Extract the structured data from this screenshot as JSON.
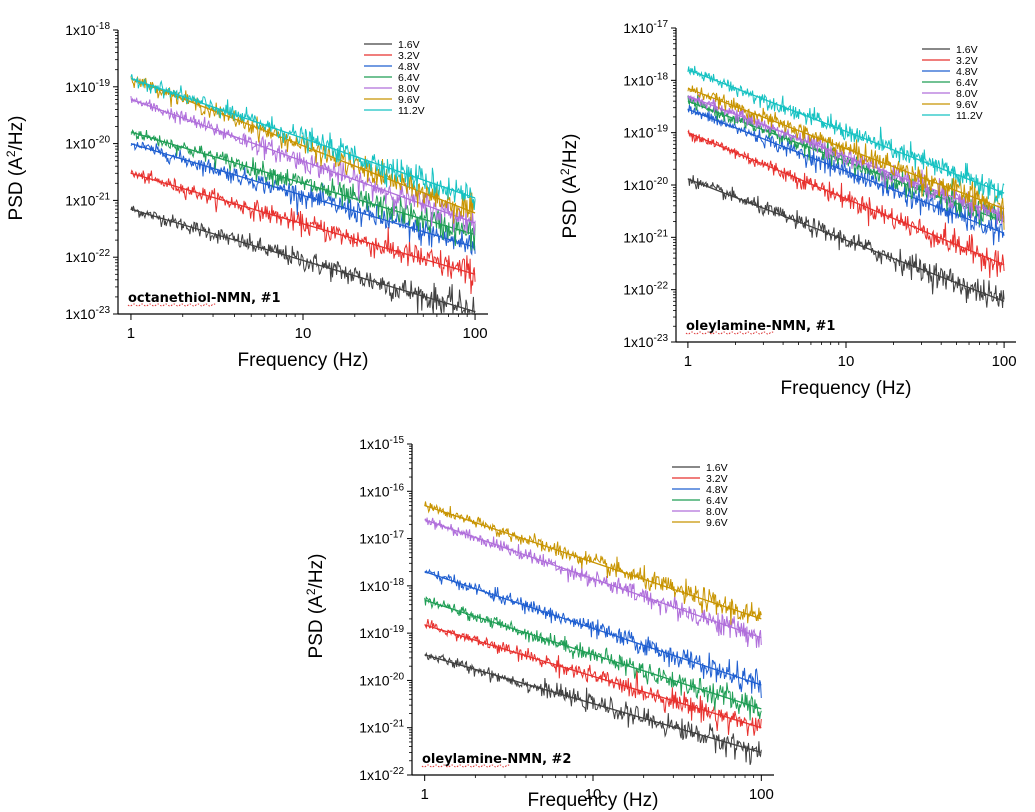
{
  "chart_data": [
    {
      "type": "line",
      "annotation": "octanethiol-NMN, #1",
      "xlabel": "Frequency (Hz)",
      "ylabel_base": "PSD (A",
      "ylabel_sup": "2",
      "ylabel_tail": "/Hz)",
      "x_scale": "log",
      "y_scale": "log",
      "xlim": [
        1,
        100
      ],
      "ylim": [
        1e-23,
        1e-18
      ],
      "x_ticks": [
        {
          "value": 1,
          "label": "1"
        },
        {
          "value": 10,
          "label": "10"
        },
        {
          "value": 100,
          "label": "100"
        }
      ],
      "y_ticks": [
        {
          "value": 1e-23,
          "base": "1x10",
          "exp": "-23"
        },
        {
          "value": 1e-22,
          "base": "1x10",
          "exp": "-22"
        },
        {
          "value": 1e-21,
          "base": "1x10",
          "exp": "-21"
        },
        {
          "value": 1e-20,
          "base": "1x10",
          "exp": "-20"
        },
        {
          "value": 1e-19,
          "base": "1x10",
          "exp": "-19"
        },
        {
          "value": 1e-18,
          "base": "1x10",
          "exp": "-18"
        }
      ],
      "legend_position": "top-right",
      "series": [
        {
          "name": "1.6V",
          "color": "#404040",
          "start": 7e-22,
          "end": 1.1e-23
        },
        {
          "name": "3.2V",
          "color": "#e8312e",
          "start": 3e-21,
          "end": 5e-23
        },
        {
          "name": "4.8V",
          "color": "#1f5fd1",
          "start": 1e-20,
          "end": 1.5e-22
        },
        {
          "name": "6.4V",
          "color": "#1f9e55",
          "start": 1.6e-20,
          "end": 2.5e-22
        },
        {
          "name": "8.0V",
          "color": "#b06fdb",
          "start": 6e-20,
          "end": 4e-22
        },
        {
          "name": "9.6V",
          "color": "#c89400",
          "start": 1.4e-19,
          "end": 6e-22
        },
        {
          "name": "11.2V",
          "color": "#16c2c2",
          "start": 1.4e-19,
          "end": 1.1e-21
        }
      ]
    },
    {
      "type": "line",
      "annotation": "oleylamine-NMN, #1",
      "xlabel": "Frequency (Hz)",
      "ylabel_base": "PSD (A",
      "ylabel_sup": "2",
      "ylabel_tail": "/Hz)",
      "x_scale": "log",
      "y_scale": "log",
      "xlim": [
        1,
        100
      ],
      "ylim": [
        1e-23,
        1e-17
      ],
      "x_ticks": [
        {
          "value": 1,
          "label": "1"
        },
        {
          "value": 10,
          "label": "10"
        },
        {
          "value": 100,
          "label": "100"
        }
      ],
      "y_ticks": [
        {
          "value": 1e-23,
          "base": "1x10",
          "exp": "-23"
        },
        {
          "value": 1e-22,
          "base": "1x10",
          "exp": "-22"
        },
        {
          "value": 1e-21,
          "base": "1x10",
          "exp": "-21"
        },
        {
          "value": 1e-20,
          "base": "1x10",
          "exp": "-20"
        },
        {
          "value": 1e-19,
          "base": "1x10",
          "exp": "-19"
        },
        {
          "value": 1e-18,
          "base": "1x10",
          "exp": "-18"
        },
        {
          "value": 1e-17,
          "base": "1x10",
          "exp": "-17"
        }
      ],
      "legend_position": "top-right",
      "series": [
        {
          "name": "1.6V",
          "color": "#404040",
          "start": 1.3e-20,
          "end": 6e-23
        },
        {
          "name": "3.2V",
          "color": "#e8312e",
          "start": 1e-19,
          "end": 3e-22
        },
        {
          "name": "4.8V",
          "color": "#1f5fd1",
          "start": 2.8e-19,
          "end": 1.2e-21
        },
        {
          "name": "6.4V",
          "color": "#1f9e55",
          "start": 4e-19,
          "end": 2e-21
        },
        {
          "name": "8.0V",
          "color": "#b06fdb",
          "start": 5e-19,
          "end": 2.5e-21
        },
        {
          "name": "9.6V",
          "color": "#c89400",
          "start": 7e-19,
          "end": 3.5e-21
        },
        {
          "name": "11.2V",
          "color": "#16c2c2",
          "start": 1.6e-18,
          "end": 7e-21
        }
      ]
    },
    {
      "type": "line",
      "annotation": "oleylamine-NMN, #2",
      "xlabel": "Frequency (Hz)",
      "ylabel_base": "PSD (A",
      "ylabel_sup": "2",
      "ylabel_tail": "/Hz)",
      "x_scale": "log",
      "y_scale": "log",
      "xlim": [
        1,
        100
      ],
      "ylim": [
        1e-22,
        1e-15
      ],
      "x_ticks": [
        {
          "value": 1,
          "label": "1"
        },
        {
          "value": 10,
          "label": "10"
        },
        {
          "value": 100,
          "label": "100"
        }
      ],
      "y_ticks": [
        {
          "value": 1e-22,
          "base": "1x10",
          "exp": "-22"
        },
        {
          "value": 1e-21,
          "base": "1x10",
          "exp": "-21"
        },
        {
          "value": 1e-20,
          "base": "1x10",
          "exp": "-20"
        },
        {
          "value": 1e-19,
          "base": "1x10",
          "exp": "-19"
        },
        {
          "value": 1e-18,
          "base": "1x10",
          "exp": "-18"
        },
        {
          "value": 1e-17,
          "base": "1x10",
          "exp": "-17"
        },
        {
          "value": 1e-16,
          "base": "1x10",
          "exp": "-16"
        },
        {
          "value": 1e-15,
          "base": "1x10",
          "exp": "-15"
        }
      ],
      "legend_position": "top-right",
      "series": [
        {
          "name": "1.6V",
          "color": "#404040",
          "start": 3.5e-20,
          "end": 3e-22
        },
        {
          "name": "3.2V",
          "color": "#e8312e",
          "start": 1.5e-19,
          "end": 1e-21
        },
        {
          "name": "4.8V",
          "color": "#1f5fd1",
          "start": 2e-18,
          "end": 8e-21
        },
        {
          "name": "6.4V",
          "color": "#1f9e55",
          "start": 5e-19,
          "end": 2.5e-21
        },
        {
          "name": "8.0V",
          "color": "#b06fdb",
          "start": 2.5e-17,
          "end": 8e-20
        },
        {
          "name": "9.6V",
          "color": "#c89400",
          "start": 5e-17,
          "end": 2e-19
        }
      ]
    }
  ]
}
